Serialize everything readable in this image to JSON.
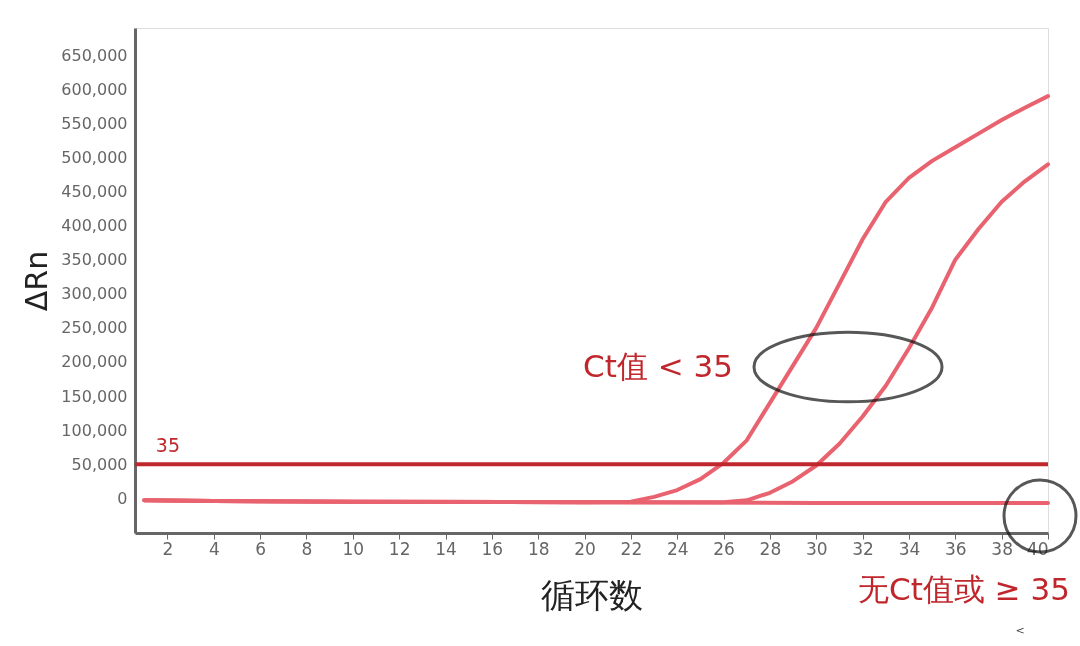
{
  "chart_data": {
    "type": "line",
    "xlabel": "循环数",
    "ylabel": "ΔRn",
    "xlim": [
      0.6,
      40
    ],
    "xticks": [
      2,
      4,
      6,
      8,
      10,
      12,
      14,
      16,
      18,
      20,
      22,
      24,
      26,
      28,
      30,
      32,
      34,
      36,
      38,
      40
    ],
    "ylim": [
      -51000,
      690000
    ],
    "yticks": [
      {
        "value": 0,
        "label": "0"
      },
      {
        "value": 50000,
        "label": "50,000"
      },
      {
        "value": 100000,
        "label": "100,000"
      },
      {
        "value": 150000,
        "label": "150,000"
      },
      {
        "value": 200000,
        "label": "200,000"
      },
      {
        "value": 250000,
        "label": "250,000"
      },
      {
        "value": 300000,
        "label": "300,000"
      },
      {
        "value": 350000,
        "label": "350,000"
      },
      {
        "value": 400000,
        "label": "400,000"
      },
      {
        "value": 450000,
        "label": "450,000"
      },
      {
        "value": 500000,
        "label": "500,000"
      },
      {
        "value": 550000,
        "label": "550,000"
      },
      {
        "value": 600000,
        "label": "600,000"
      },
      {
        "value": 650000,
        "label": "650,000"
      }
    ],
    "grid": false,
    "line_style": "solid",
    "marker": "none",
    "series": [
      {
        "color": "#e8636f",
        "x": [
          1,
          4,
          10,
          20,
          30,
          40
        ],
        "values": [
          -3000,
          -4000,
          -5000,
          -6000,
          -7000,
          -7000
        ]
      },
      {
        "color": "#e8636f",
        "x": [
          1,
          4,
          10,
          20,
          22,
          23,
          24,
          25,
          26,
          27,
          28,
          29,
          30,
          31,
          32,
          33,
          34,
          35,
          36,
          37,
          38,
          39,
          40
        ],
        "values": [
          -3000,
          -4000,
          -5000,
          -6000,
          -5000,
          2000,
          12000,
          28000,
          52000,
          85000,
          140000,
          195000,
          250000,
          315000,
          380000,
          435000,
          470000,
          495000,
          515000,
          535000,
          555000,
          573000,
          590000
        ]
      },
      {
        "color": "#e8636f",
        "x": [
          1,
          4,
          10,
          20,
          26,
          27,
          28,
          29,
          30,
          31,
          32,
          33,
          34,
          35,
          36,
          37,
          38,
          39,
          40
        ],
        "values": [
          -3000,
          -4000,
          -5000,
          -6000,
          -6000,
          -3000,
          8000,
          25000,
          48000,
          80000,
          120000,
          165000,
          220000,
          280000,
          350000,
          395000,
          435000,
          465000,
          490000
        ]
      }
    ],
    "ref_lines": [
      {
        "axis": "y",
        "value": 50000,
        "color": "#c0272d"
      }
    ],
    "annotations": [
      "Ct值 < 35",
      "无Ct值或 ≥ 35",
      "<",
      {
        "text": "35",
        "x": 1.5,
        "y": 50000
      }
    ]
  }
}
